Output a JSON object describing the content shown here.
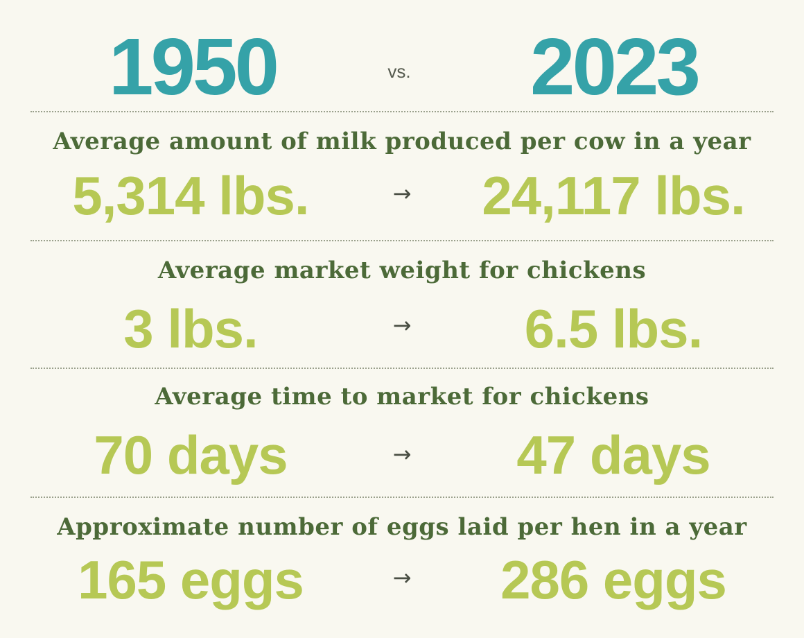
{
  "header": {
    "year_left": "1950",
    "vs": "vs.",
    "year_right": "2023"
  },
  "arrow_glyph": "→",
  "colors": {
    "background": "#f9f8f0",
    "year": "#35a2a8",
    "label": "#4c6a38",
    "value": "#b6c855"
  },
  "rows": [
    {
      "label": "Average amount of milk produced per cow in a year",
      "value_1950": "5,314 lbs.",
      "value_2023": "24,117 lbs."
    },
    {
      "label": "Average market weight for chickens",
      "value_1950": "3 lbs.",
      "value_2023": "6.5 lbs."
    },
    {
      "label": "Average time to market for chickens",
      "value_1950": "70 days",
      "value_2023": "47 days"
    },
    {
      "label": "Approximate number of eggs laid per hen in a year",
      "value_1950": "165 eggs",
      "value_2023": "286 eggs"
    }
  ]
}
